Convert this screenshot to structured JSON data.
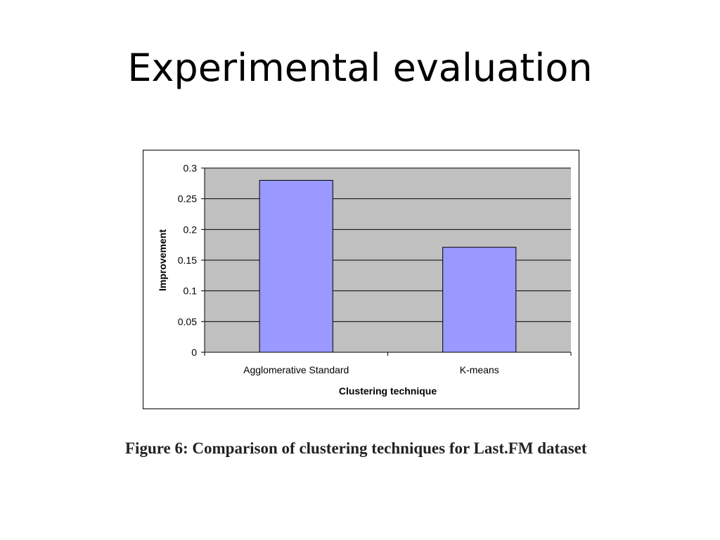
{
  "slide": {
    "title": "Experimental evaluation",
    "caption": "Figure 6:  Comparison of clustering techniques for Last.FM dataset"
  },
  "chart_data": {
    "type": "bar",
    "title": "",
    "xlabel": "Clustering technique",
    "ylabel": "Improvement",
    "categories": [
      "Agglomerative Standard",
      "K-means"
    ],
    "values": [
      0.28,
      0.171
    ],
    "ylim": [
      0,
      0.3
    ],
    "yticks": [
      "0",
      "0.05",
      "0.1",
      "0.15",
      "0.2",
      "0.25",
      "0.3"
    ],
    "ytick_values": [
      0,
      0.05,
      0.1,
      0.15,
      0.2,
      0.25,
      0.3
    ],
    "grid": true,
    "legend": "none",
    "colors": {
      "bar_fill": "#9999ff",
      "bar_stroke": "#000000",
      "plot_background": "#c0c0c0",
      "gridline": "#000000"
    }
  }
}
